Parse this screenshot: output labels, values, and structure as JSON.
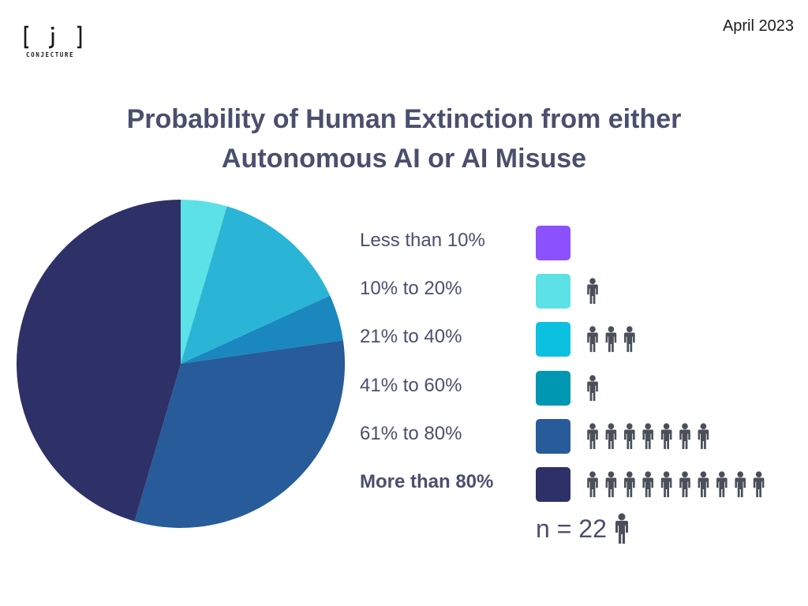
{
  "header": {
    "logo_mark": "[ j ]",
    "logo_text": "CONJECTURE",
    "date": "April 2023"
  },
  "chart_data": {
    "type": "pie",
    "title_line1": "Probability of Human Extinction from either",
    "title_line2": "Autonomous AI or AI Misuse",
    "categories": [
      "Less than 10%",
      "10% to 20%",
      "21% to 40%",
      "41% to 60%",
      "61% to 80%",
      "More than 80%"
    ],
    "values": [
      0,
      1,
      3,
      1,
      7,
      10
    ],
    "colors": [
      "#8c52ff",
      "#5ce1e6",
      "#2ab5d6",
      "#1a87bf",
      "#275b99",
      "#2e3068"
    ],
    "legend_swatch_colors": [
      "#8c52ff",
      "#5ce1e6",
      "#0cc0df",
      "#0097b2",
      "#275b99",
      "#2e3068"
    ],
    "highlighted_category": "More than 80%",
    "legend_position": "right",
    "n_label": "n = 22",
    "total": 22
  },
  "icons": {
    "person": "person-icon",
    "person_color": "#4a4f5a"
  }
}
